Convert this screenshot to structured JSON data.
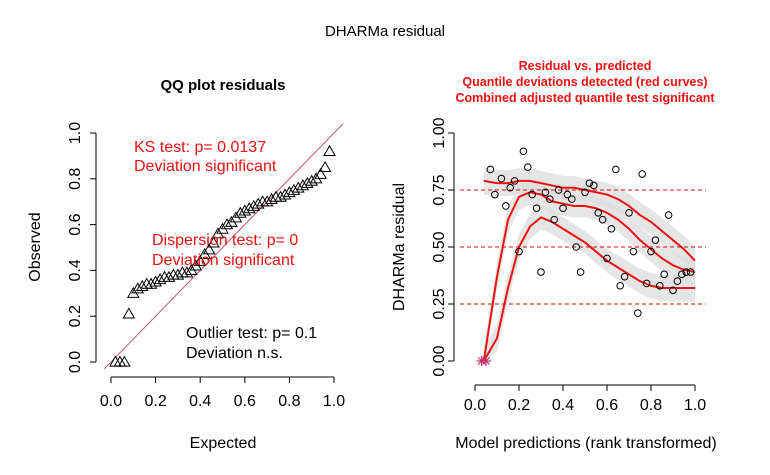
{
  "page": {
    "title": "DHARMa residual"
  },
  "colors": {
    "axis": "#000000",
    "qq_line": "#c8546a",
    "red_text": "#ee1111",
    "quantile_curve": "#ee1111",
    "ref_line": "#cc1111",
    "band": "#dcdcdc",
    "outlier": "#c0306a"
  },
  "chart_data": [
    {
      "type": "scatter",
      "title": "QQ plot residuals",
      "xlabel": "Expected",
      "ylabel": "Observed",
      "xlim": [
        0,
        1
      ],
      "ylim": [
        0,
        1
      ],
      "x_ticks": [
        "0.0",
        "0.2",
        "0.4",
        "0.6",
        "0.8",
        "1.0"
      ],
      "y_ticks": [
        "0.0",
        "0.2",
        "0.4",
        "0.6",
        "0.8",
        "1.0"
      ],
      "marker": "open-triangle",
      "reference_line": {
        "from": [
          0,
          0
        ],
        "to": [
          1,
          1
        ]
      },
      "points": {
        "x": [
          0.02,
          0.04,
          0.06,
          0.08,
          0.1,
          0.12,
          0.14,
          0.16,
          0.18,
          0.2,
          0.22,
          0.24,
          0.26,
          0.28,
          0.3,
          0.32,
          0.34,
          0.36,
          0.38,
          0.4,
          0.42,
          0.44,
          0.46,
          0.48,
          0.5,
          0.52,
          0.54,
          0.56,
          0.58,
          0.6,
          0.62,
          0.64,
          0.66,
          0.68,
          0.7,
          0.72,
          0.74,
          0.76,
          0.78,
          0.8,
          0.82,
          0.84,
          0.86,
          0.88,
          0.9,
          0.92,
          0.94,
          0.96,
          0.98
        ],
        "y": [
          0.0,
          0.0,
          0.0,
          0.21,
          0.3,
          0.32,
          0.33,
          0.34,
          0.34,
          0.35,
          0.36,
          0.37,
          0.37,
          0.38,
          0.38,
          0.39,
          0.39,
          0.4,
          0.42,
          0.44,
          0.47,
          0.49,
          0.52,
          0.56,
          0.58,
          0.6,
          0.61,
          0.63,
          0.65,
          0.66,
          0.67,
          0.68,
          0.69,
          0.7,
          0.7,
          0.71,
          0.72,
          0.72,
          0.73,
          0.74,
          0.75,
          0.76,
          0.77,
          0.78,
          0.79,
          0.8,
          0.82,
          0.85,
          0.92
        ]
      },
      "annotations": [
        {
          "lines": [
            "KS test: p= 0.0137",
            "Deviation  significant"
          ],
          "color": "red"
        },
        {
          "lines": [
            "Dispersion test: p= 0",
            "Deviation  significant"
          ],
          "color": "red"
        },
        {
          "lines": [
            "Outlier test: p= 0.1",
            "Deviation  n.s."
          ],
          "color": "black"
        }
      ]
    },
    {
      "type": "scatter",
      "title_lines": [
        "Residual vs. predicted",
        "Quantile deviations detected (red curves)",
        "Combined adjusted quantile test significant"
      ],
      "xlabel": "Model predictions (rank transformed)",
      "ylabel": "DHARMa residual",
      "xlim": [
        0,
        1
      ],
      "ylim": [
        0,
        1
      ],
      "x_ticks": [
        "0.0",
        "0.2",
        "0.4",
        "0.6",
        "0.8",
        "1.0"
      ],
      "y_ticks": [
        "0.00",
        "0.25",
        "0.50",
        "0.75",
        "1.00"
      ],
      "marker": "open-circle",
      "reference_lines_y": [
        0.25,
        0.5,
        0.75
      ],
      "points": {
        "x": [
          0.07,
          0.09,
          0.12,
          0.14,
          0.16,
          0.18,
          0.2,
          0.22,
          0.24,
          0.26,
          0.28,
          0.3,
          0.32,
          0.34,
          0.36,
          0.38,
          0.4,
          0.42,
          0.44,
          0.46,
          0.48,
          0.5,
          0.52,
          0.54,
          0.56,
          0.58,
          0.6,
          0.62,
          0.64,
          0.66,
          0.68,
          0.7,
          0.72,
          0.74,
          0.76,
          0.78,
          0.8,
          0.82,
          0.84,
          0.86,
          0.88,
          0.9,
          0.92,
          0.94,
          0.96,
          0.98
        ],
        "y": [
          0.84,
          0.73,
          0.8,
          0.68,
          0.76,
          0.79,
          0.48,
          0.92,
          0.85,
          0.73,
          0.67,
          0.39,
          0.74,
          0.71,
          0.62,
          0.75,
          0.67,
          0.73,
          0.71,
          0.5,
          0.39,
          0.74,
          0.78,
          0.77,
          0.65,
          0.62,
          0.45,
          0.58,
          0.84,
          0.33,
          0.37,
          0.65,
          0.48,
          0.21,
          0.82,
          0.34,
          0.48,
          0.53,
          0.33,
          0.38,
          0.64,
          0.31,
          0.35,
          0.38,
          0.39,
          0.39
        ]
      },
      "outliers": {
        "x": [
          0.03,
          0.05
        ],
        "y": [
          0.0,
          0.0
        ]
      },
      "quantile_curves": [
        {
          "x": [
            0.04,
            0.1,
            0.15,
            0.2,
            0.25,
            0.3,
            0.35,
            0.4,
            0.45,
            0.5,
            0.55,
            0.6,
            0.65,
            0.7,
            0.75,
            0.8,
            0.85,
            0.9,
            0.95,
            1.0
          ],
          "y": [
            0.0,
            0.1,
            0.32,
            0.5,
            0.59,
            0.63,
            0.61,
            0.58,
            0.55,
            0.52,
            0.48,
            0.44,
            0.41,
            0.38,
            0.35,
            0.33,
            0.32,
            0.32,
            0.32,
            0.32
          ]
        },
        {
          "x": [
            0.04,
            0.1,
            0.15,
            0.2,
            0.25,
            0.3,
            0.35,
            0.4,
            0.45,
            0.5,
            0.55,
            0.6,
            0.65,
            0.7,
            0.75,
            0.8,
            0.85,
            0.9,
            0.95,
            1.0
          ],
          "y": [
            0.0,
            0.37,
            0.62,
            0.72,
            0.74,
            0.73,
            0.7,
            0.69,
            0.68,
            0.68,
            0.67,
            0.65,
            0.62,
            0.58,
            0.53,
            0.49,
            0.45,
            0.42,
            0.4,
            0.39
          ]
        },
        {
          "x": [
            0.04,
            0.1,
            0.15,
            0.2,
            0.25,
            0.3,
            0.35,
            0.4,
            0.45,
            0.5,
            0.55,
            0.6,
            0.65,
            0.7,
            0.75,
            0.8,
            0.85,
            0.9,
            0.95,
            1.0
          ],
          "y": [
            0.79,
            0.78,
            0.78,
            0.79,
            0.79,
            0.78,
            0.77,
            0.76,
            0.76,
            0.75,
            0.74,
            0.73,
            0.71,
            0.68,
            0.64,
            0.61,
            0.57,
            0.53,
            0.49,
            0.44
          ]
        }
      ]
    }
  ]
}
